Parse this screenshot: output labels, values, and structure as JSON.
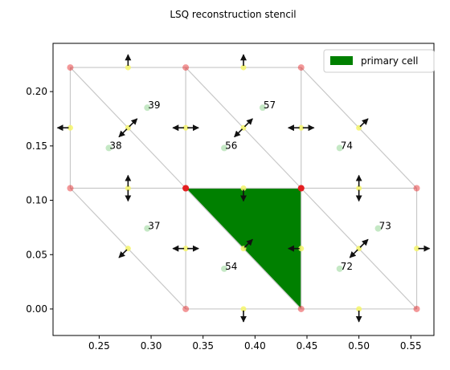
{
  "chart_data": {
    "type": "scatter",
    "title": "LSQ reconstruction stencil",
    "xlim": [
      0.2056,
      0.5722
    ],
    "ylim": [
      -0.0244,
      0.2444
    ],
    "x_ticks": [
      0.25,
      0.3,
      0.35,
      0.4,
      0.45,
      0.5,
      0.55
    ],
    "x_tick_labels": [
      "0.25",
      "0.30",
      "0.35",
      "0.40",
      "0.45",
      "0.50",
      "0.55"
    ],
    "y_ticks": [
      0.0,
      0.05,
      0.1,
      0.15,
      0.2
    ],
    "y_tick_labels": [
      "0.00",
      "0.05",
      "0.10",
      "0.15",
      "0.20"
    ],
    "legend": {
      "placement": "top-right",
      "entries": [
        {
          "label": "primary cell",
          "color": "#008000"
        }
      ]
    },
    "colors": {
      "primary": "#008000",
      "vertex": "#e41a1c",
      "mesh": "#c8c8c8",
      "centroid": "#bfe6bf",
      "midpoint": "#f5f56a",
      "arrow": "#111111"
    },
    "primary_cell": [
      [
        0.3333,
        0.1111
      ],
      [
        0.4444,
        0.1111
      ],
      [
        0.4444,
        0.0
      ]
    ],
    "mesh_edges": [
      [
        [
          0.2222,
          0.2222
        ],
        [
          0.3333,
          0.2222
        ]
      ],
      [
        [
          0.3333,
          0.2222
        ],
        [
          0.4444,
          0.2222
        ]
      ],
      [
        [
          0.2222,
          0.1111
        ],
        [
          0.3333,
          0.1111
        ]
      ],
      [
        [
          0.3333,
          0.1111
        ],
        [
          0.4444,
          0.1111
        ]
      ],
      [
        [
          0.4444,
          0.1111
        ],
        [
          0.5556,
          0.1111
        ]
      ],
      [
        [
          0.3333,
          0.0
        ],
        [
          0.4444,
          0.0
        ]
      ],
      [
        [
          0.4444,
          0.0
        ],
        [
          0.5556,
          0.0
        ]
      ],
      [
        [
          0.2222,
          0.2222
        ],
        [
          0.2222,
          0.1111
        ]
      ],
      [
        [
          0.3333,
          0.2222
        ],
        [
          0.3333,
          0.1111
        ]
      ],
      [
        [
          0.4444,
          0.2222
        ],
        [
          0.4444,
          0.1111
        ]
      ],
      [
        [
          0.3333,
          0.1111
        ],
        [
          0.3333,
          0.0
        ]
      ],
      [
        [
          0.4444,
          0.1111
        ],
        [
          0.4444,
          0.0
        ]
      ],
      [
        [
          0.5556,
          0.1111
        ],
        [
          0.5556,
          0.0
        ]
      ],
      [
        [
          0.2222,
          0.2222
        ],
        [
          0.3333,
          0.1111
        ]
      ],
      [
        [
          0.3333,
          0.2222
        ],
        [
          0.4444,
          0.1111
        ]
      ],
      [
        [
          0.4444,
          0.2222
        ],
        [
          0.5556,
          0.1111
        ]
      ],
      [
        [
          0.2222,
          0.1111
        ],
        [
          0.3333,
          0.0
        ]
      ],
      [
        [
          0.3333,
          0.1111
        ],
        [
          0.4444,
          0.0
        ]
      ],
      [
        [
          0.4444,
          0.1111
        ],
        [
          0.5556,
          0.0
        ]
      ]
    ],
    "vertices": [
      [
        0.2222,
        0.2222
      ],
      [
        0.3333,
        0.2222
      ],
      [
        0.4444,
        0.2222
      ],
      [
        0.2222,
        0.1111
      ],
      [
        0.3333,
        0.1111
      ],
      [
        0.4444,
        0.1111
      ],
      [
        0.5556,
        0.1111
      ],
      [
        0.3333,
        0.0
      ],
      [
        0.4444,
        0.0
      ],
      [
        0.5556,
        0.0
      ]
    ],
    "stencil_vertices": [
      [
        0.3333,
        0.1111
      ],
      [
        0.4444,
        0.1111
      ]
    ],
    "cells": [
      {
        "id": "39",
        "x": 0.2963,
        "y": 0.1852
      },
      {
        "id": "38",
        "x": 0.2593,
        "y": 0.1481
      },
      {
        "id": "57",
        "x": 0.4074,
        "y": 0.1852
      },
      {
        "id": "56",
        "x": 0.3704,
        "y": 0.1481
      },
      {
        "id": "74",
        "x": 0.4815,
        "y": 0.1481
      },
      {
        "id": "37",
        "x": 0.2963,
        "y": 0.0741
      },
      {
        "id": "54",
        "x": 0.3704,
        "y": 0.037
      },
      {
        "id": "73",
        "x": 0.5185,
        "y": 0.0741
      },
      {
        "id": "72",
        "x": 0.4815,
        "y": 0.037
      }
    ],
    "face_normals": [
      {
        "x": 0.2778,
        "y": 0.2222,
        "nx": 0.0,
        "ny": 1.0
      },
      {
        "x": 0.3889,
        "y": 0.2222,
        "nx": 0.0,
        "ny": 1.0
      },
      {
        "x": 0.2222,
        "y": 0.1667,
        "nx": -1.0,
        "ny": 0.0
      },
      {
        "x": 0.2778,
        "y": 0.1667,
        "nx": 0.707,
        "ny": 0.707
      },
      {
        "x": 0.2778,
        "y": 0.1667,
        "nx": -0.707,
        "ny": -0.707
      },
      {
        "x": 0.3333,
        "y": 0.1667,
        "nx": 1.0,
        "ny": 0.0
      },
      {
        "x": 0.3333,
        "y": 0.1667,
        "nx": -1.0,
        "ny": 0.0
      },
      {
        "x": 0.3889,
        "y": 0.1667,
        "nx": 0.707,
        "ny": 0.707
      },
      {
        "x": 0.3889,
        "y": 0.1667,
        "nx": -0.707,
        "ny": -0.707
      },
      {
        "x": 0.4444,
        "y": 0.1667,
        "nx": 1.0,
        "ny": 0.0
      },
      {
        "x": 0.4444,
        "y": 0.1667,
        "nx": -1.0,
        "ny": 0.0
      },
      {
        "x": 0.5,
        "y": 0.1667,
        "nx": 0.707,
        "ny": 0.707
      },
      {
        "x": 0.2778,
        "y": 0.1111,
        "nx": 0.0,
        "ny": 1.0
      },
      {
        "x": 0.2778,
        "y": 0.1111,
        "nx": 0.0,
        "ny": -1.0
      },
      {
        "x": 0.3889,
        "y": 0.1111,
        "nx": 0.0,
        "ny": -1.0
      },
      {
        "x": 0.5,
        "y": 0.1111,
        "nx": 0.0,
        "ny": 1.0
      },
      {
        "x": 0.5,
        "y": 0.1111,
        "nx": 0.0,
        "ny": -1.0
      },
      {
        "x": 0.2778,
        "y": 0.0556,
        "nx": -0.707,
        "ny": -0.707
      },
      {
        "x": 0.3333,
        "y": 0.0556,
        "nx": 1.0,
        "ny": 0.0
      },
      {
        "x": 0.3333,
        "y": 0.0556,
        "nx": -1.0,
        "ny": 0.0
      },
      {
        "x": 0.3889,
        "y": 0.0556,
        "nx": 0.707,
        "ny": 0.707
      },
      {
        "x": 0.4444,
        "y": 0.0556,
        "nx": -1.0,
        "ny": 0.0
      },
      {
        "x": 0.5,
        "y": 0.0556,
        "nx": 0.707,
        "ny": 0.707
      },
      {
        "x": 0.5,
        "y": 0.0556,
        "nx": -0.707,
        "ny": -0.707
      },
      {
        "x": 0.5556,
        "y": 0.0556,
        "nx": 1.0,
        "ny": 0.0
      },
      {
        "x": 0.3889,
        "y": 0.0,
        "nx": 0.0,
        "ny": -1.0
      },
      {
        "x": 0.5,
        "y": 0.0,
        "nx": 0.0,
        "ny": -1.0
      }
    ]
  }
}
